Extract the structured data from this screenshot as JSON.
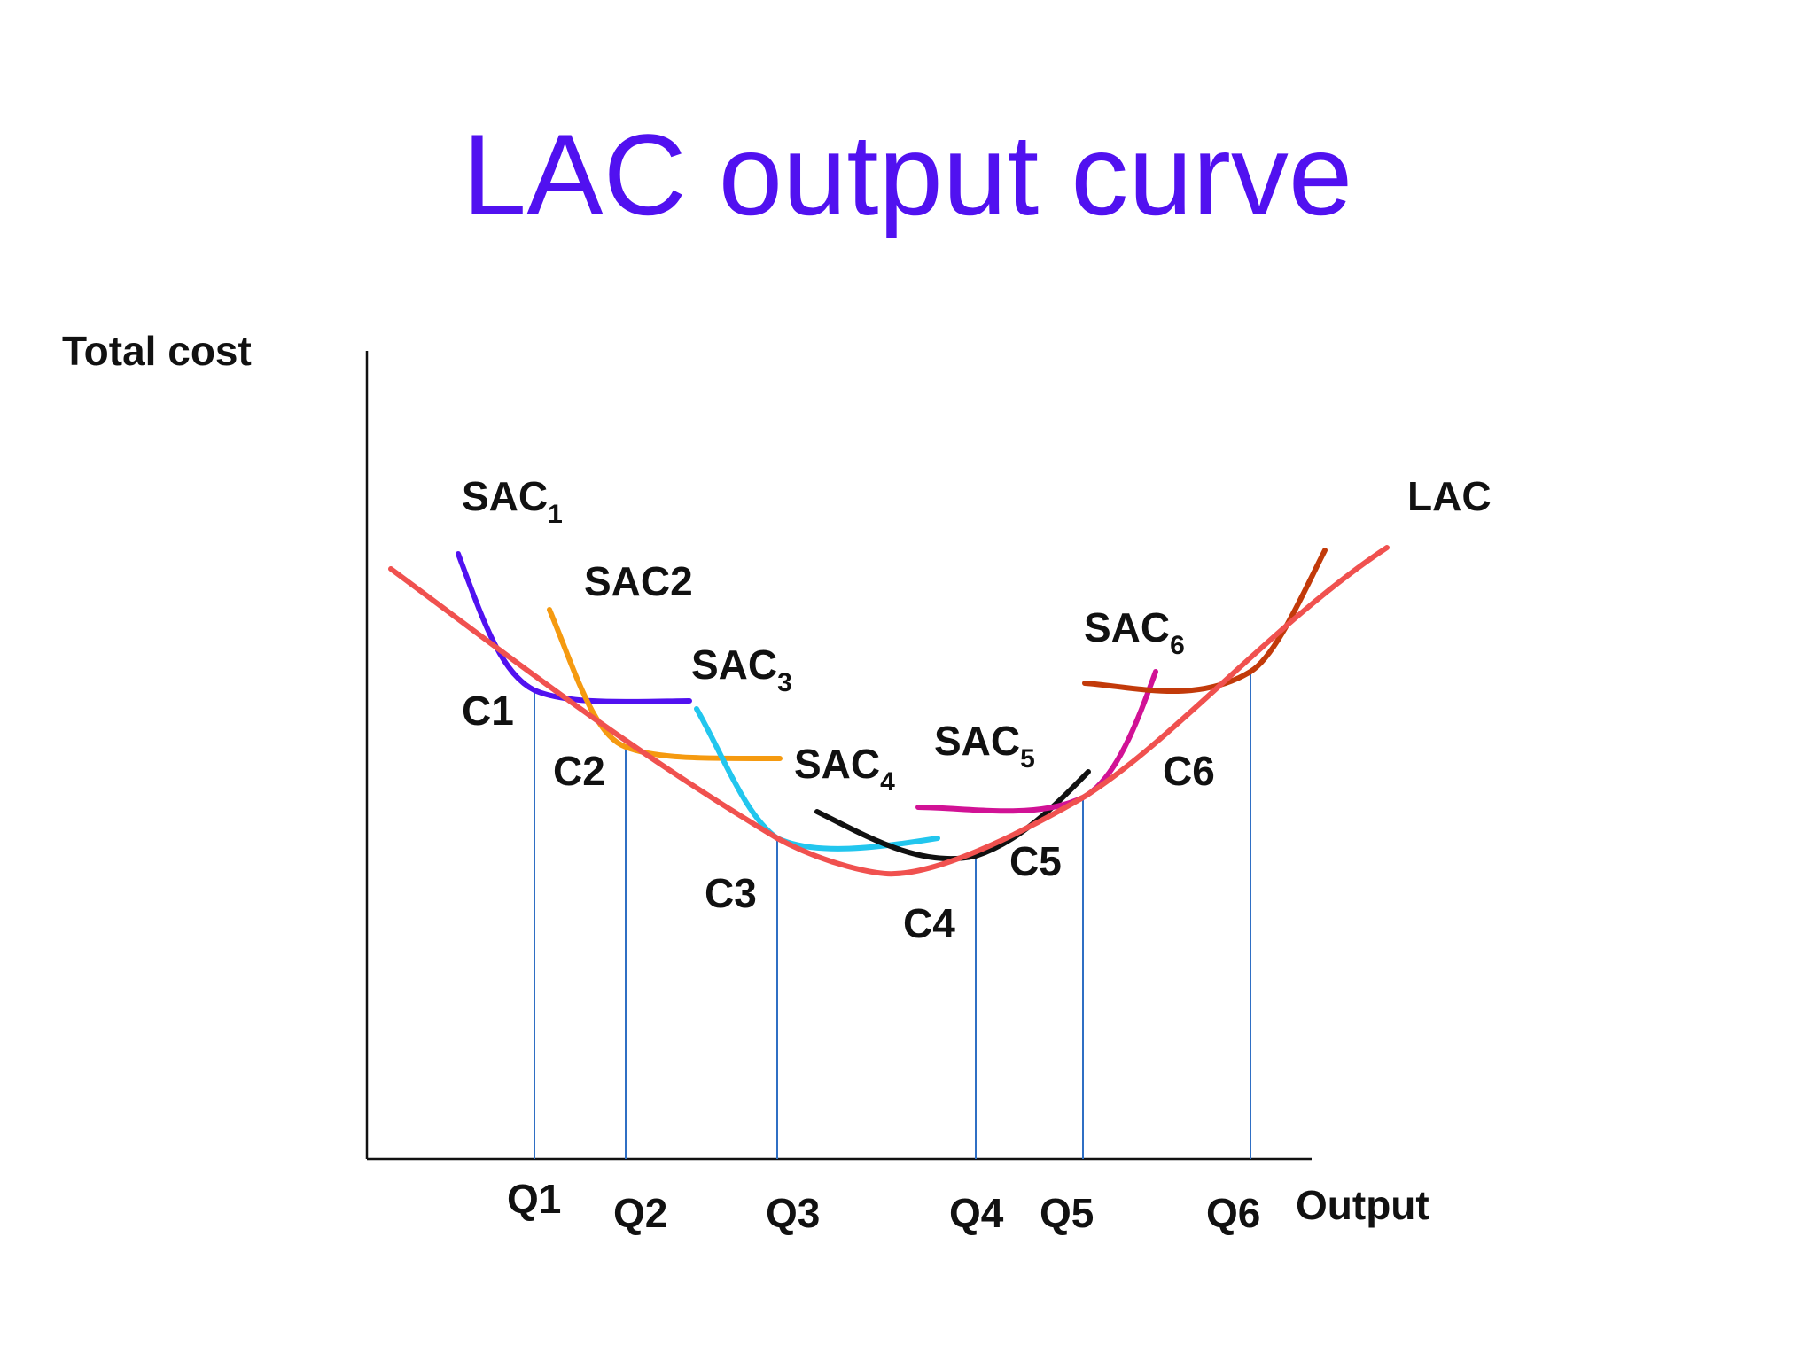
{
  "title": "LAC output curve",
  "y_axis_label": "Total cost",
  "x_axis_label": "Output",
  "curves": [
    {
      "label": "LAC",
      "color": "#f0514f"
    },
    {
      "label": "SAC",
      "sub": "1",
      "color": "#5111f0"
    },
    {
      "label": "SAC2",
      "sub": "",
      "color": "#f59a10"
    },
    {
      "label": "SAC",
      "sub": "3",
      "color": "#22c6ee"
    },
    {
      "label": "SAC",
      "sub": "4",
      "color": "#111111"
    },
    {
      "label": "SAC",
      "sub": "5",
      "color": "#d11295"
    },
    {
      "label": "SAC",
      "sub": "6",
      "color": "#c23a0a"
    }
  ],
  "output_points": [
    "Q1",
    "Q2",
    "Q3",
    "Q4",
    "Q5",
    "Q6"
  ],
  "cost_points": [
    "C1",
    "C2",
    "C3",
    "C4",
    "C5",
    "C6"
  ],
  "colors": {
    "title": "#5111f0",
    "axis": "#111111",
    "dropline": "#2f6fc4"
  }
}
